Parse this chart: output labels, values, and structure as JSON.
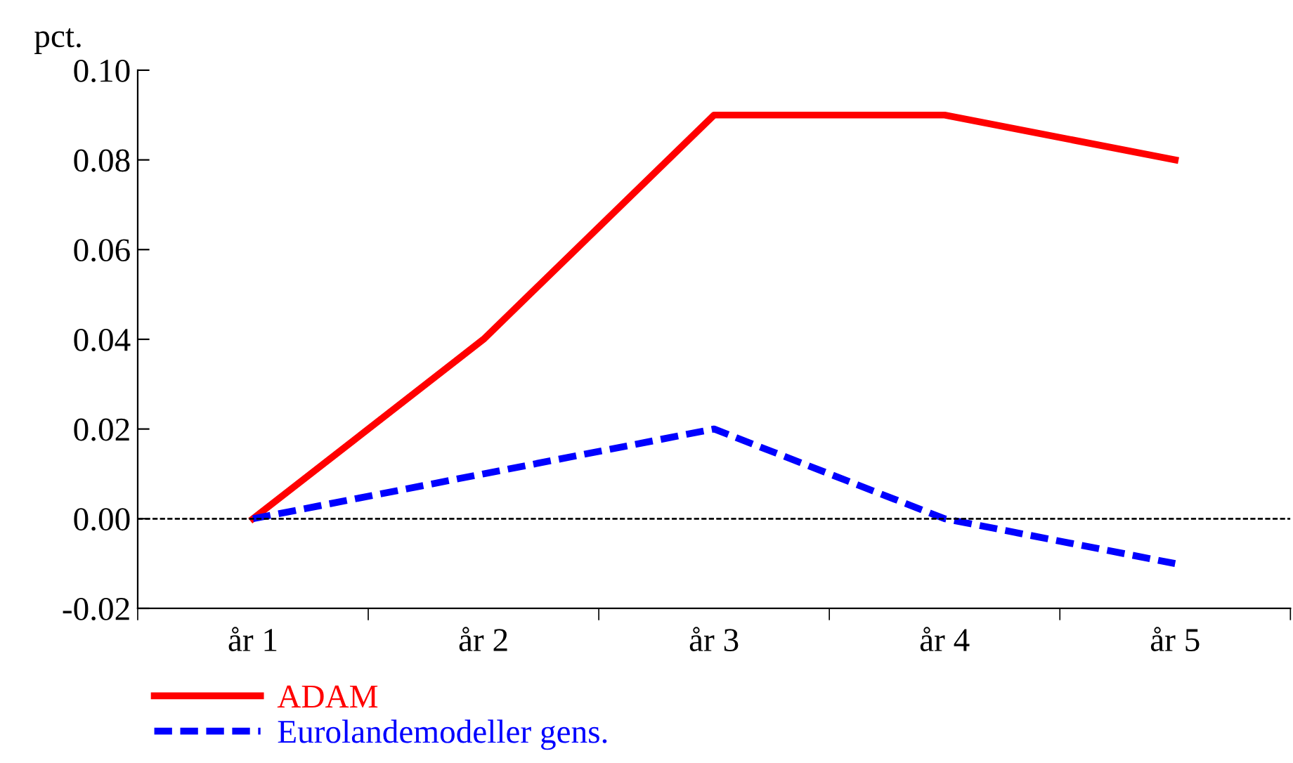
{
  "chart_data": {
    "type": "line",
    "ylabel": "pct.",
    "categories": [
      "år 1",
      "år 2",
      "år 3",
      "år 4",
      "år 5"
    ],
    "series": [
      {
        "name": "ADAM",
        "color": "#ff0000",
        "values": [
          0.0,
          0.04,
          0.09,
          0.09,
          0.08
        ],
        "line_style": "solid"
      },
      {
        "name": "Eurolandemodeller gens.",
        "color": "#0000ff",
        "values": [
          0.0,
          0.01,
          0.02,
          0.0,
          -0.01
        ],
        "line_style": "dashed"
      }
    ],
    "ylim": [
      -0.02,
      0.1
    ],
    "yticks": [
      {
        "value": -0.02,
        "label": "-0.02"
      },
      {
        "value": 0.0,
        "label": "0.00"
      },
      {
        "value": 0.02,
        "label": "0.02"
      },
      {
        "value": 0.04,
        "label": "0.04"
      },
      {
        "value": 0.06,
        "label": "0.06"
      },
      {
        "value": 0.08,
        "label": "0.08"
      },
      {
        "value": 0.1,
        "label": "0.10"
      }
    ],
    "ref_lines": [
      {
        "axis": "y",
        "value": 0.0,
        "label": null,
        "color": "#000000",
        "line_style": "dashed"
      }
    ],
    "grid": false,
    "legend": "bottom left",
    "marker": "none"
  }
}
